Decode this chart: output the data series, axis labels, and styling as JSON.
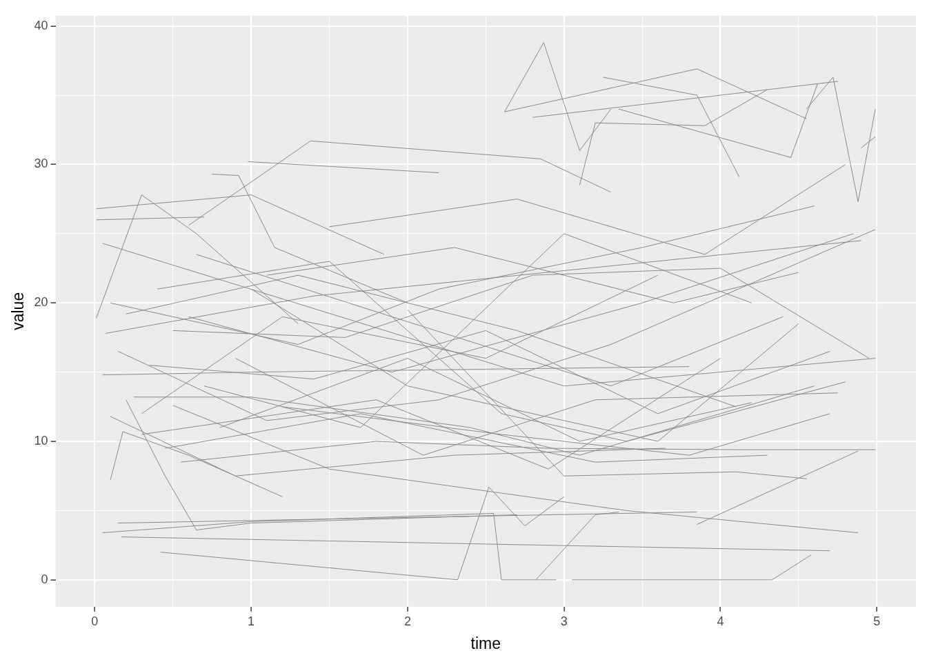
{
  "chart_data": {
    "type": "line",
    "xlabel": "time",
    "ylabel": "value",
    "color": "#8c8c8c",
    "grid": true,
    "xlim": [
      -0.25,
      5.25
    ],
    "ylim": [
      -1.94,
      40.74
    ],
    "xticks": [
      0,
      {
        "value": 0.5,
        "label": null
      },
      1,
      {
        "value": 1.5,
        "label": null
      },
      2,
      {
        "value": 2.5,
        "label": null
      },
      3,
      {
        "value": 3.5,
        "label": null
      },
      4,
      {
        "value": 4.5,
        "label": null
      },
      5
    ],
    "yticks": [
      0,
      {
        "value": 5,
        "label": null
      },
      10,
      {
        "value": 15,
        "label": null
      },
      20,
      {
        "value": 25,
        "label": null
      },
      30,
      {
        "value": 35,
        "label": null
      },
      40
    ],
    "series": [
      {
        "x": [
          0.01,
          0.7
        ],
        "values": [
          26.0,
          26.2
        ]
      },
      {
        "x": [
          0.01,
          1.0,
          1.85
        ],
        "values": [
          26.8,
          27.8,
          23.5
        ]
      },
      {
        "x": [
          0.01,
          0.3,
          0.65,
          1.3
        ],
        "values": [
          18.9,
          27.8,
          25.0,
          18.5
        ]
      },
      {
        "x": [
          0.75,
          0.92,
          1.15,
          2.0
        ],
        "values": [
          29.3,
          29.2,
          24.0,
          20.0
        ]
      },
      {
        "x": [
          0.98,
          2.2
        ],
        "values": [
          30.2,
          29.4
        ]
      },
      {
        "x": [
          0.6,
          1.38,
          2.85,
          3.3
        ],
        "values": [
          25.6,
          31.7,
          30.4,
          28.0
        ]
      },
      {
        "x": [
          2.62,
          2.87,
          3.1,
          3.3
        ],
        "values": [
          33.8,
          38.8,
          31.0,
          34.0
        ]
      },
      {
        "x": [
          2.62,
          3.85,
          4.55
        ],
        "values": [
          33.8,
          36.9,
          33.3
        ]
      },
      {
        "x": [
          3.25,
          3.85,
          4.12
        ],
        "values": [
          36.3,
          35.0,
          29.1
        ]
      },
      {
        "x": [
          3.35,
          4.45,
          4.62
        ],
        "values": [
          34.0,
          30.5,
          35.8
        ]
      },
      {
        "x": [
          3.1,
          3.2,
          3.9,
          4.3
        ],
        "values": [
          28.5,
          33.0,
          32.8,
          35.4
        ]
      },
      {
        "x": [
          4.55,
          4.72,
          4.88,
          4.99
        ],
        "values": [
          34.0,
          36.3,
          27.3,
          34.0
        ]
      },
      {
        "x": [
          2.8,
          4.75
        ],
        "values": [
          33.4,
          36.0
        ]
      },
      {
        "x": [
          4.9,
          4.99
        ],
        "values": [
          31.2,
          32.0
        ]
      },
      {
        "x": [
          0.42,
          2.32,
          2.52,
          2.75,
          3.0
        ],
        "values": [
          2.0,
          0.0,
          6.7,
          3.9,
          6.0
        ]
      },
      {
        "x": [
          0.17,
          4.7
        ],
        "values": [
          3.1,
          2.1
        ]
      },
      {
        "x": [
          0.05,
          1.0,
          2.55,
          2.6,
          2.95
        ],
        "values": [
          3.4,
          4.2,
          4.8,
          0.0,
          0.0
        ]
      },
      {
        "x": [
          3.05,
          4.33,
          4.58
        ],
        "values": [
          0.0,
          0.0,
          1.8
        ]
      },
      {
        "x": [
          2.82,
          3.2,
          3.35
        ],
        "values": [
          0.0,
          4.7,
          4.9
        ]
      },
      {
        "x": [
          0.1,
          0.18,
          0.6,
          1.2
        ],
        "values": [
          7.2,
          10.7,
          9.0,
          6.0
        ]
      },
      {
        "x": [
          0.2,
          0.45,
          0.65,
          1.0,
          2.7
        ],
        "values": [
          13.0,
          7.5,
          3.6,
          4.1,
          4.7
        ]
      },
      {
        "x": [
          0.15,
          3.85
        ],
        "values": [
          4.1,
          4.9
        ]
      },
      {
        "x": [
          3.85,
          4.88
        ],
        "values": [
          4.0,
          9.3
        ]
      },
      {
        "x": [
          0.5,
          1.5,
          3.4,
          4.88
        ],
        "values": [
          12.6,
          8.0,
          5.0,
          3.4
        ]
      },
      {
        "x": [
          0.1,
          0.9,
          2.3,
          3.65
        ],
        "values": [
          11.8,
          7.5,
          9.0,
          9.5
        ]
      },
      {
        "x": [
          0.05,
          1.0,
          3.8
        ],
        "values": [
          14.8,
          15.0,
          15.4
        ]
      },
      {
        "x": [
          0.07,
          1.4,
          4.9
        ],
        "values": [
          17.8,
          20.5,
          24.5
        ]
      },
      {
        "x": [
          0.05,
          2.0,
          3.0,
          4.99
        ],
        "values": [
          24.3,
          17.5,
          14.0,
          16.0
        ]
      },
      {
        "x": [
          0.3,
          1.2,
          2.5,
          3.6
        ],
        "values": [
          12.0,
          19.0,
          16.0,
          22.0
        ]
      },
      {
        "x": [
          1.0,
          2.0,
          3.6,
          4.5
        ],
        "values": [
          21.0,
          14.0,
          10.0,
          18.5
        ]
      },
      {
        "x": [
          0.2,
          1.3,
          2.7,
          4.1
        ],
        "values": [
          19.2,
          22.0,
          18.0,
          12.5
        ]
      },
      {
        "x": [
          0.7,
          1.7,
          3.0,
          4.2
        ],
        "values": [
          14.0,
          11.0,
          25.0,
          20.0
        ]
      },
      {
        "x": [
          0.15,
          1.1,
          2.2,
          3.3,
          4.99
        ],
        "values": [
          16.5,
          11.5,
          13.0,
          17.0,
          25.3
        ]
      },
      {
        "x": [
          0.4,
          1.5,
          2.6,
          3.4,
          4.8
        ],
        "values": [
          21.0,
          23.0,
          12.0,
          10.0,
          14.3
        ]
      },
      {
        "x": [
          0.3,
          1.8,
          2.9,
          4.0
        ],
        "values": [
          10.5,
          13.0,
          8.0,
          16.0
        ]
      },
      {
        "x": [
          0.6,
          1.9,
          3.5,
          4.85
        ],
        "values": [
          19.0,
          15.0,
          20.0,
          25.0
        ]
      },
      {
        "x": [
          0.25,
          1.0,
          2.4,
          3.1,
          4.6
        ],
        "values": [
          13.2,
          13.2,
          11.0,
          9.0,
          14.0
        ]
      },
      {
        "x": [
          0.9,
          2.1,
          3.2,
          4.75
        ],
        "values": [
          16.0,
          9.0,
          13.0,
          13.5
        ]
      },
      {
        "x": [
          0.5,
          1.6,
          2.8,
          4.0,
          4.95
        ],
        "values": [
          18.0,
          17.5,
          22.0,
          22.5,
          16.0
        ]
      },
      {
        "x": [
          1.1,
          2.3,
          3.7,
          4.5
        ],
        "values": [
          22.0,
          24.0,
          20.0,
          22.2
        ]
      },
      {
        "x": [
          0.35,
          1.4,
          2.5,
          3.6,
          4.7
        ],
        "values": [
          15.5,
          14.5,
          18.0,
          12.0,
          16.5
        ]
      },
      {
        "x": [
          0.8,
          2.0,
          3.1,
          4.2
        ],
        "values": [
          11.0,
          16.0,
          10.0,
          12.8
        ]
      },
      {
        "x": [
          1.5,
          2.7,
          3.9,
          4.8
        ],
        "values": [
          25.5,
          27.5,
          23.5,
          30.0
        ]
      },
      {
        "x": [
          0.45,
          1.7,
          3.2,
          4.3
        ],
        "values": [
          9.5,
          12.0,
          8.5,
          9.0
        ]
      },
      {
        "x": [
          2.0,
          3.0,
          4.1,
          4.55
        ],
        "values": [
          19.5,
          7.5,
          7.8,
          7.3
        ]
      },
      {
        "x": [
          1.2,
          2.6,
          3.8,
          4.7
        ],
        "values": [
          12.5,
          10.5,
          9.0,
          12.0
        ]
      },
      {
        "x": [
          0.1,
          1.3,
          2.2,
          3.5,
          4.6
        ],
        "values": [
          20.0,
          17.0,
          21.0,
          24.0,
          27.0
        ]
      },
      {
        "x": [
          0.55,
          1.8,
          2.9,
          4.1,
          4.99
        ],
        "values": [
          8.5,
          10.0,
          9.5,
          9.4,
          9.4
        ]
      },
      {
        "x": [
          0.65,
          1.9,
          3.3,
          4.4
        ],
        "values": [
          23.5,
          19.0,
          14.0,
          19.0
        ]
      }
    ]
  }
}
